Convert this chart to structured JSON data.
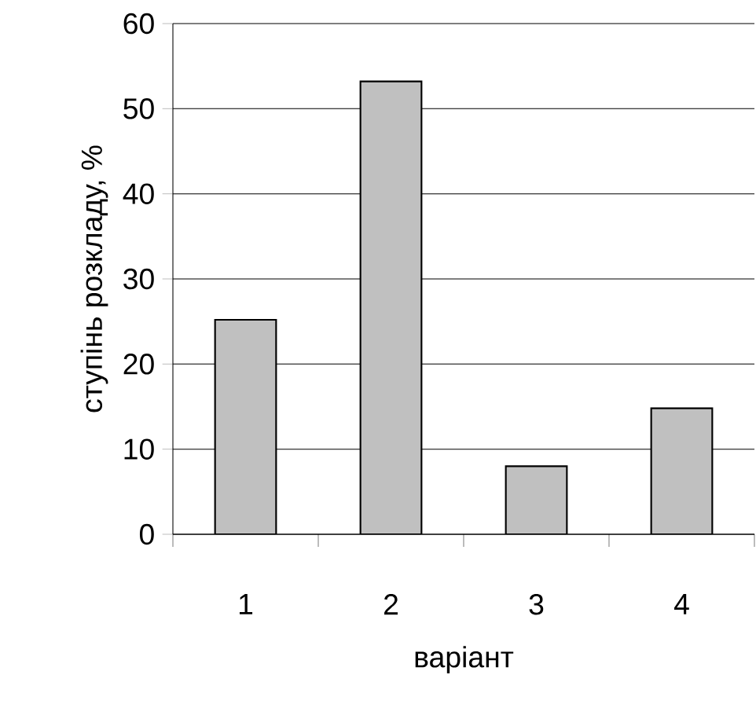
{
  "chart_data": {
    "type": "bar",
    "xlabel": "варіант",
    "ylabel": "ступінь розкладу, %",
    "categories": [
      "1",
      "2",
      "3",
      "4"
    ],
    "values": [
      25.2,
      53.2,
      8,
      14.8
    ],
    "color": "#c0c0c0",
    "ylim": [
      0,
      60
    ],
    "yticks": [
      0,
      10,
      20,
      30,
      40,
      50,
      60
    ],
    "grid": "y"
  }
}
